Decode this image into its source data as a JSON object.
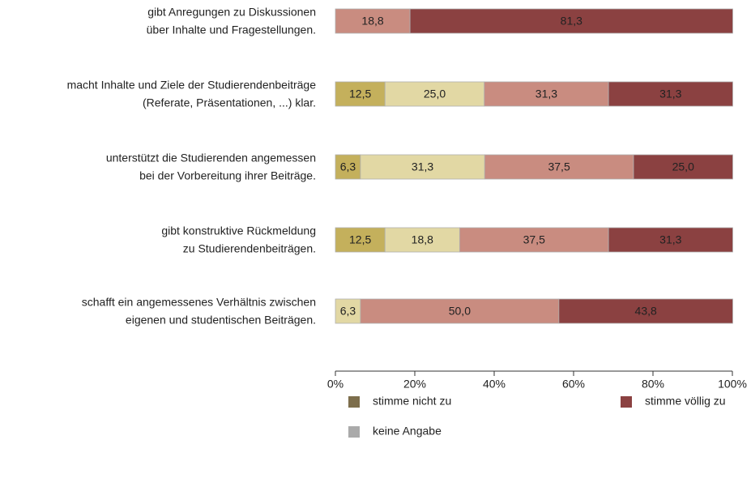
{
  "chart_data": {
    "type": "stacked-bar-horizontal",
    "categories": [
      [
        "gibt Anregungen zu Diskussionen",
        "über Inhalte und Fragestellungen."
      ],
      [
        "macht Inhalte und Ziele der Studierendenbeiträge",
        "(Referate, Präsentationen, ...) klar."
      ],
      [
        "unterstützt die Studierenden angemessen",
        "bei der Vorbereitung ihrer Beiträge."
      ],
      [
        "gibt konstruktive Rückmeldung",
        "zu Studierendenbeiträgen."
      ],
      [
        "schafft ein angemessenes Verhältnis zwischen",
        "eigenen und studentischen Beiträgen."
      ]
    ],
    "series": [
      {
        "color": "#c4b05c",
        "values": [
          null,
          12.5,
          6.3,
          12.5,
          null
        ],
        "value_labels": [
          null,
          "12,5",
          "6,3",
          "12,5",
          null
        ]
      },
      {
        "color": "#e2d8a4",
        "values": [
          null,
          25.0,
          31.3,
          18.8,
          6.3
        ],
        "value_labels": [
          null,
          "25,0",
          "31,3",
          "18,8",
          "6,3"
        ]
      },
      {
        "color": "#c98c80",
        "values": [
          18.8,
          31.3,
          37.5,
          37.5,
          50.0
        ],
        "value_labels": [
          "18,8",
          "31,3",
          "37,5",
          "37,5",
          "50,0"
        ]
      },
      {
        "color": "#8b4141",
        "values": [
          81.3,
          31.3,
          25.0,
          31.3,
          43.8
        ],
        "value_labels": [
          "81,3",
          "31,3",
          "25,0",
          "31,3",
          "43,8"
        ]
      }
    ],
    "legend": [
      {
        "name": "stimme nicht zu",
        "color": "#7d6e4c"
      },
      {
        "name": "stimme völlig zu",
        "color": "#8b4141"
      },
      {
        "name": "keine Angabe",
        "color": "#aaaaaa"
      }
    ],
    "xlim": [
      0,
      100
    ],
    "xticks": [
      {
        "value": 0,
        "label": "0%"
      },
      {
        "value": 20,
        "label": "20%"
      },
      {
        "value": 40,
        "label": "40%"
      },
      {
        "value": 60,
        "label": "60%"
      },
      {
        "value": 80,
        "label": "80%"
      },
      {
        "value": 100,
        "label": "100%"
      }
    ]
  }
}
